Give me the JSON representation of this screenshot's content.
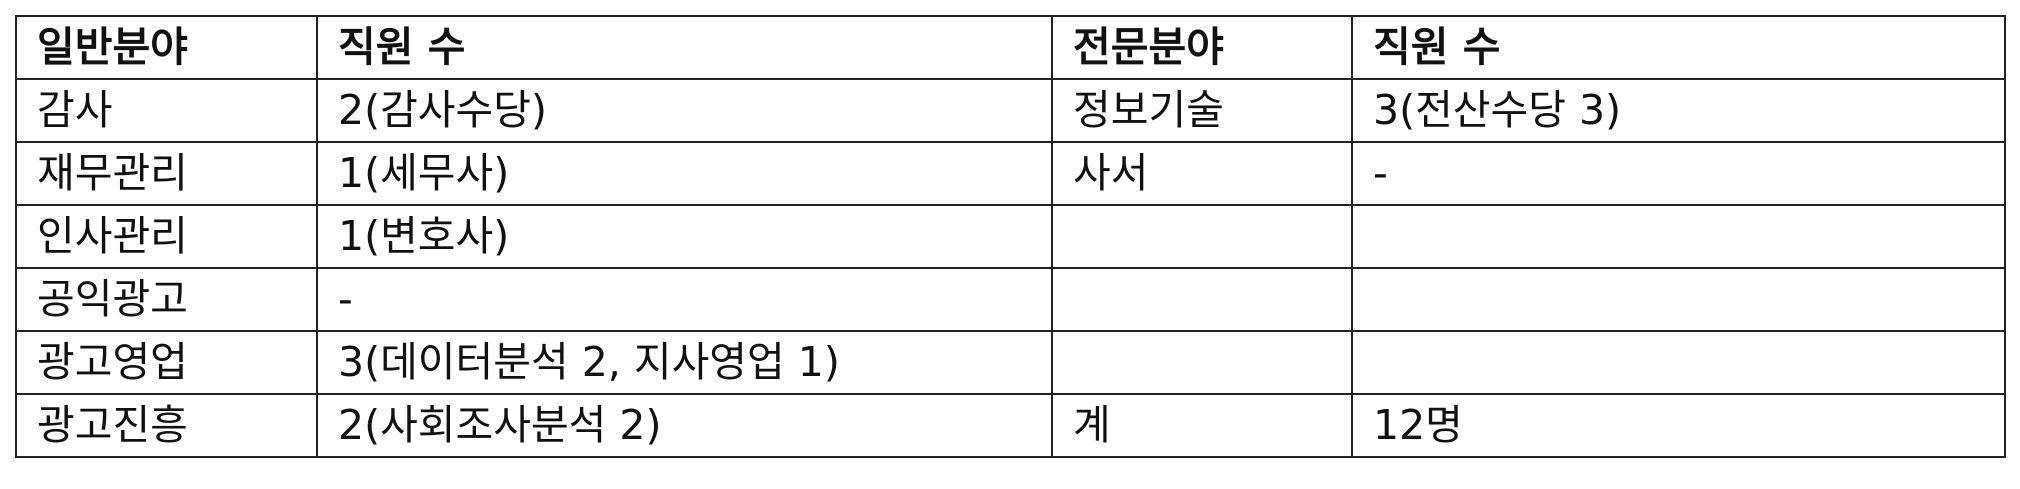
{
  "table": {
    "header": [
      "일반분야",
      "직원 수",
      "전문분야",
      "직원 수"
    ],
    "rows": [
      [
        "감사",
        "2(감사수당)",
        "정보기술",
        "3(전산수당 3)"
      ],
      [
        "재무관리",
        "1(세무사)",
        "사서",
        "-"
      ],
      [
        "인사관리",
        "1(변호사)",
        "",
        ""
      ],
      [
        "공익광고",
        "-",
        "",
        ""
      ],
      [
        "광고영업",
        "3(데이터분석 2, 지사영업 1)",
        "",
        ""
      ],
      [
        "광고진흥",
        "2(사회조사분석 2)",
        "계",
        "12명"
      ]
    ]
  }
}
